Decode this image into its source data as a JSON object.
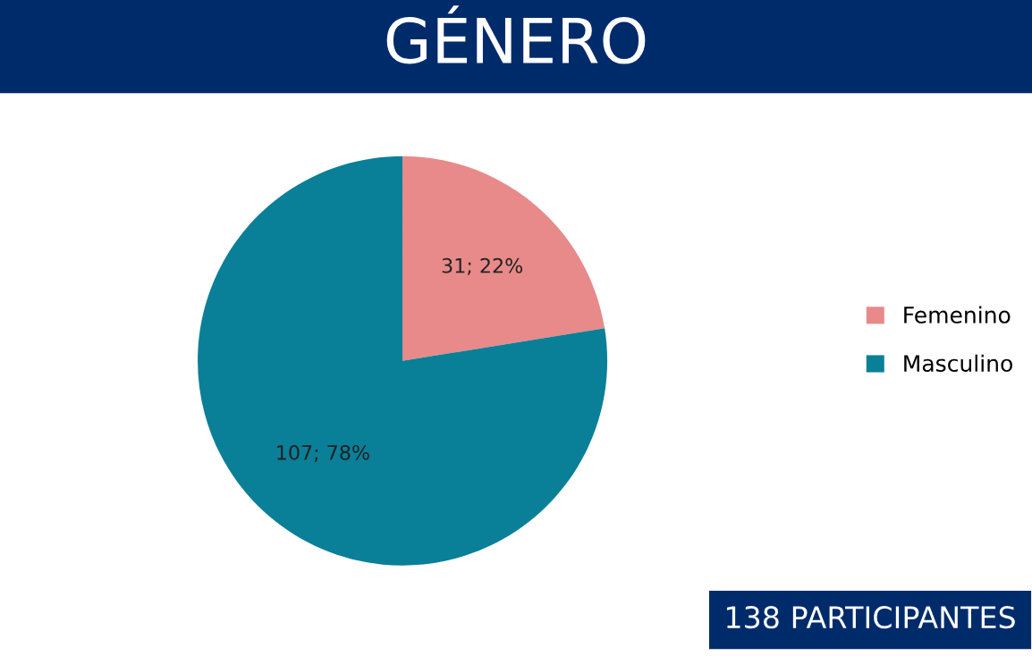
{
  "chart_data": {
    "type": "pie",
    "title": "GÉNERO",
    "categories": [
      "Femenino",
      "Masculino"
    ],
    "values": [
      31,
      107
    ],
    "colors": [
      "#e88a8a",
      "#0a7f98"
    ],
    "value_labels": [
      "31; 22%",
      "107; 78%"
    ],
    "legend": "right",
    "annotations": [
      "138 PARTICIPANTES"
    ]
  }
}
